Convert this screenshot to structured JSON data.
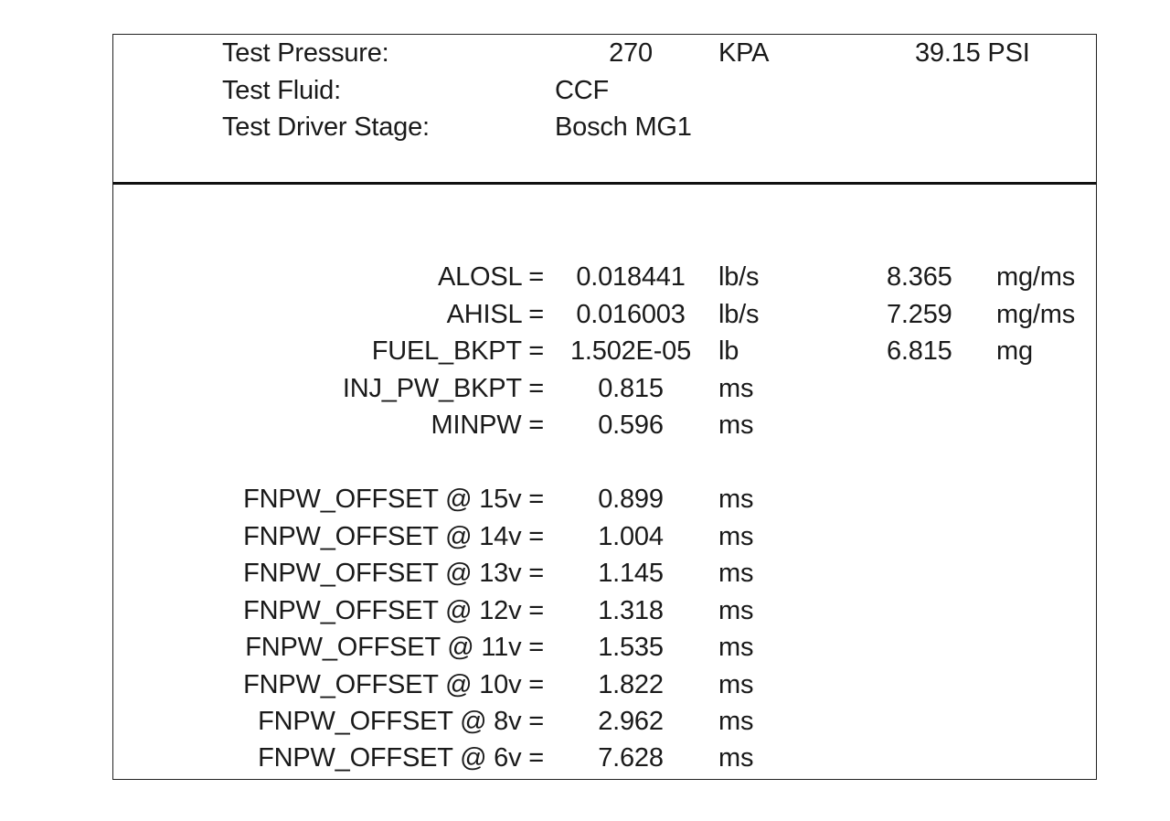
{
  "header": {
    "pressure_label": "Test Pressure:",
    "pressure_value": "270",
    "pressure_unit": "KPA",
    "pressure_alt": "39.15 PSI",
    "fluid_label": "Test Fluid:",
    "fluid_value": "CCF",
    "driver_label": "Test Driver Stage:",
    "driver_value": "Bosch MG1"
  },
  "params": [
    {
      "label": "ALOSL =",
      "value": "0.018441",
      "unit": "lb/s",
      "alt_value": "8.365",
      "alt_unit": "mg/ms"
    },
    {
      "label": "AHISL =",
      "value": "0.016003",
      "unit": "lb/s",
      "alt_value": "7.259",
      "alt_unit": "mg/ms"
    },
    {
      "label": "FUEL_BKPT =",
      "value": "1.502E-05",
      "unit": "lb",
      "alt_value": "6.815",
      "alt_unit": "mg"
    },
    {
      "label": "INJ_PW_BKPT =",
      "value": "0.815",
      "unit": "ms"
    },
    {
      "label": "MINPW =",
      "value": "0.596",
      "unit": "ms"
    }
  ],
  "offsets": [
    {
      "label": "FNPW_OFFSET @ 15v =",
      "value": "0.899",
      "unit": "ms"
    },
    {
      "label": "FNPW_OFFSET @ 14v =",
      "value": "1.004",
      "unit": "ms"
    },
    {
      "label": "FNPW_OFFSET @ 13v =",
      "value": "1.145",
      "unit": "ms"
    },
    {
      "label": "FNPW_OFFSET @ 12v =",
      "value": "1.318",
      "unit": "ms"
    },
    {
      "label": "FNPW_OFFSET @ 11v =",
      "value": "1.535",
      "unit": "ms"
    },
    {
      "label": "FNPW_OFFSET @ 10v =",
      "value": "1.822",
      "unit": "ms"
    },
    {
      "label": "FNPW_OFFSET @ 8v =",
      "value": "2.962",
      "unit": "ms"
    },
    {
      "label": "FNPW_OFFSET @ 6v =",
      "value": "7.628",
      "unit": "ms"
    }
  ]
}
